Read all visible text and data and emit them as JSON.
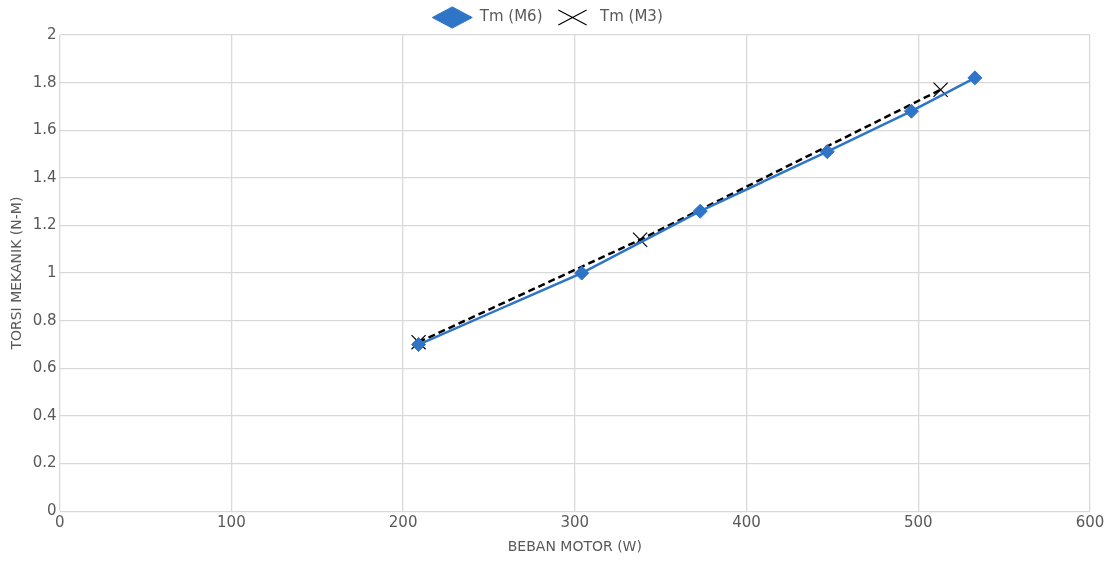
{
  "chart_data": {
    "type": "line",
    "xlabel": "BEBAN MOTOR (W)",
    "ylabel": "TORSI MEKANIK (N-M)",
    "xlim": [
      0,
      600
    ],
    "xticks": [
      0,
      100,
      200,
      300,
      400,
      500,
      600
    ],
    "ylim": [
      0,
      2
    ],
    "yticks": [
      0,
      {
        "value": 0.2,
        "label": "0.2"
      },
      {
        "value": 0.4,
        "label": "0.4"
      },
      {
        "value": 0.6,
        "label": "0.6"
      },
      {
        "value": 0.8,
        "label": "0.8"
      },
      1,
      {
        "value": 1.2,
        "label": "1.2"
      },
      {
        "value": 1.4,
        "label": "1.4"
      },
      {
        "value": 1.6,
        "label": "1.6"
      },
      {
        "value": 1.8,
        "label": "1.8"
      },
      2
    ],
    "grid": true,
    "legend": "top",
    "series": [
      {
        "name": "Tm (M6)",
        "color": "#2e75c8",
        "marker": "diamond",
        "line_style": "solid",
        "x": [
          209,
          304,
          373,
          447,
          496,
          533
        ],
        "values": [
          0.7,
          1.0,
          1.26,
          1.51,
          1.68,
          1.82
        ]
      },
      {
        "name": "Tm (M3)",
        "color": "#000000",
        "marker": "cross",
        "line_style": "dashed",
        "x": [
          209,
          338,
          513
        ],
        "values": [
          0.71,
          1.14,
          1.77
        ]
      }
    ]
  }
}
